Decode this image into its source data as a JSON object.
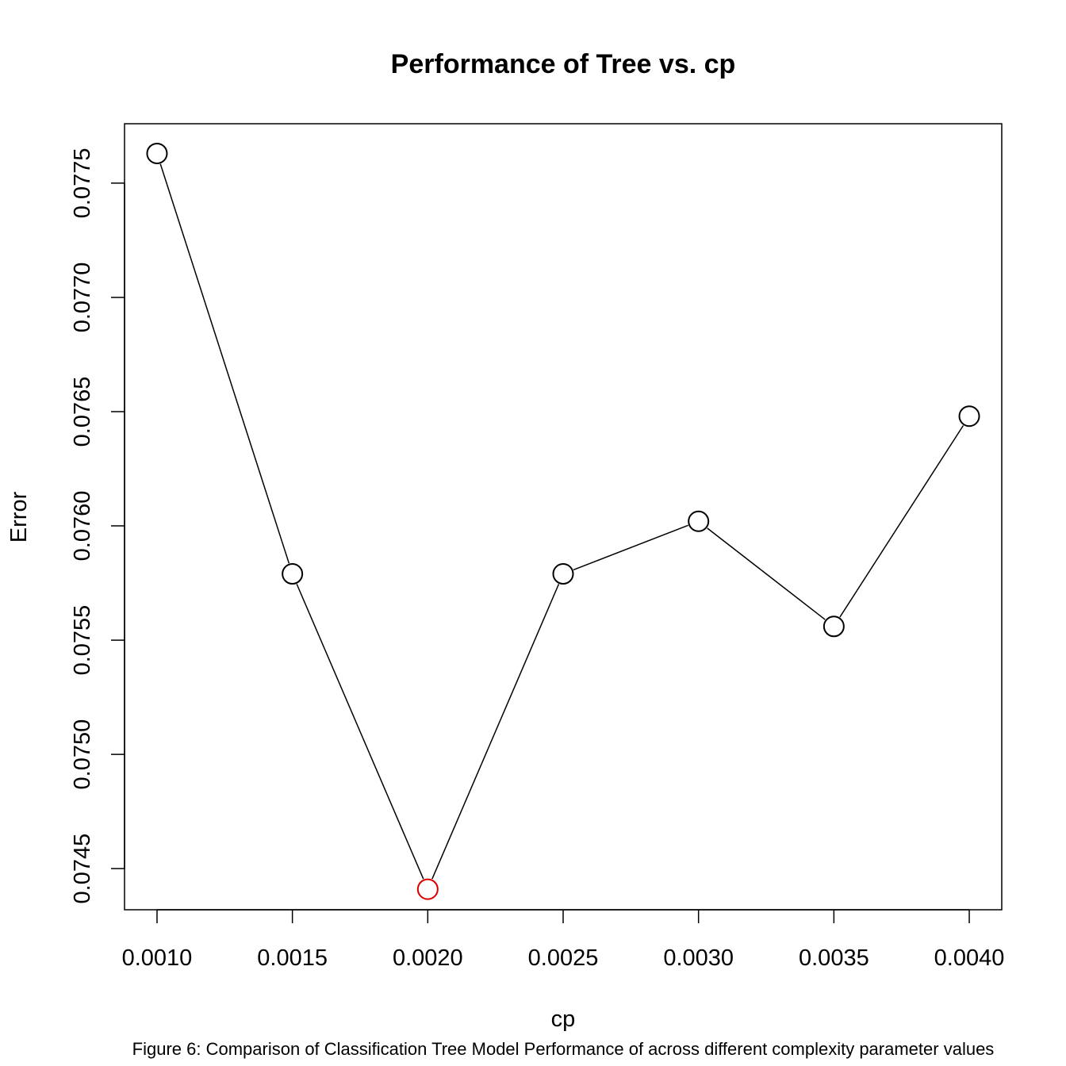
{
  "chart_data": {
    "type": "line",
    "title": "Performance of Tree vs. cp",
    "xlabel": "cp",
    "ylabel": "Error",
    "x": [
      0.001,
      0.0015,
      0.002,
      0.0025,
      0.003,
      0.0035,
      0.004
    ],
    "values": [
      0.07763,
      0.07579,
      0.07441,
      0.07579,
      0.07602,
      0.07556,
      0.07648
    ],
    "highlight_index": 2,
    "marker": "open-circle",
    "line_color": "#000000",
    "marker_color": "#000000",
    "highlight_color": "#dd0000",
    "xticks": [
      "0.0010",
      "0.0015",
      "0.0020",
      "0.0025",
      "0.0030",
      "0.0035",
      "0.0040"
    ],
    "yticks": [
      "0.0745",
      "0.0750",
      "0.0755",
      "0.0760",
      "0.0765",
      "0.0770",
      "0.0775"
    ],
    "xlim": [
      0.00088,
      0.00412
    ],
    "ylim": [
      0.07432,
      0.07776
    ],
    "grid": false,
    "legend": "none"
  },
  "caption": "Figure 6: Comparison of Classification Tree Model Performance of across different complexity parameter values"
}
